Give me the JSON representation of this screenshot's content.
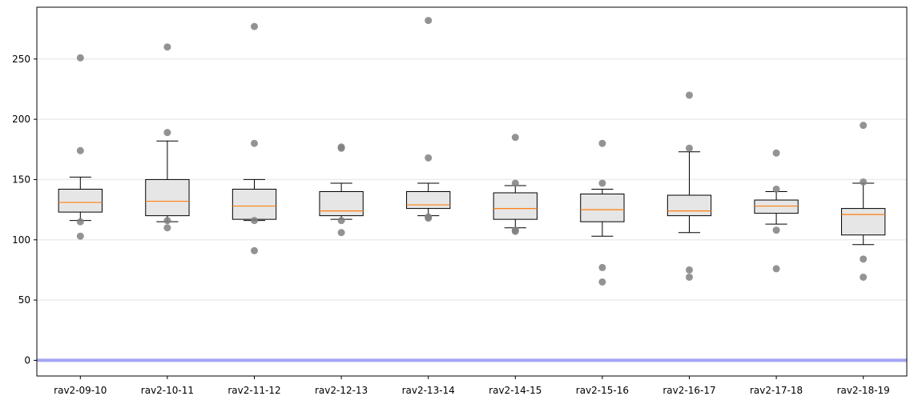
{
  "chart_data": {
    "type": "box",
    "title": "",
    "xlabel": "",
    "ylabel": "",
    "ylim": [
      -13,
      293
    ],
    "yticks": [
      0,
      50,
      100,
      150,
      200,
      250
    ],
    "grid": "horizontal",
    "reference_line": {
      "y": 0,
      "color": "#a4a4f4"
    },
    "colors": {
      "box_fill": "#e6e6e6",
      "median": "#ff7f0e",
      "outlier": "#808080",
      "grid": "#ececec"
    },
    "categories": [
      "rav2-09-10",
      "rav2-10-11",
      "rav2-11-12",
      "rav2-12-13",
      "rav2-13-14",
      "rav2-14-15",
      "rav2-15-16",
      "rav2-16-17",
      "rav2-17-18",
      "rav2-18-19"
    ],
    "boxes": [
      {
        "whisker_low": 116,
        "q1": 123,
        "median": 131,
        "q3": 142,
        "whisker_high": 152,
        "outliers": [
          251,
          174,
          115,
          103
        ]
      },
      {
        "whisker_low": 115,
        "q1": 120,
        "median": 132,
        "q3": 150,
        "whisker_high": 182,
        "outliers": [
          260,
          189,
          116,
          110
        ]
      },
      {
        "whisker_low": 116,
        "q1": 117,
        "median": 128,
        "q3": 142,
        "whisker_high": 150,
        "outliers": [
          277,
          180,
          116,
          91
        ]
      },
      {
        "whisker_low": 117,
        "q1": 120,
        "median": 124,
        "q3": 140,
        "whisker_high": 147,
        "outliers": [
          177,
          176,
          116,
          106
        ]
      },
      {
        "whisker_low": 120,
        "q1": 126,
        "median": 129,
        "q3": 140,
        "whisker_high": 147,
        "outliers": [
          282,
          168,
          119,
          118
        ]
      },
      {
        "whisker_low": 110,
        "q1": 117,
        "median": 126,
        "q3": 139,
        "whisker_high": 145,
        "outliers": [
          185,
          147,
          108,
          107
        ]
      },
      {
        "whisker_low": 103,
        "q1": 115,
        "median": 125,
        "q3": 138,
        "whisker_high": 142,
        "outliers": [
          180,
          147,
          77,
          65
        ]
      },
      {
        "whisker_low": 106,
        "q1": 120,
        "median": 124,
        "q3": 137,
        "whisker_high": 173,
        "outliers": [
          220,
          176,
          75,
          69
        ]
      },
      {
        "whisker_low": 113,
        "q1": 122,
        "median": 128,
        "q3": 133,
        "whisker_high": 140,
        "outliers": [
          172,
          142,
          108,
          76
        ]
      },
      {
        "whisker_low": 96,
        "q1": 104,
        "median": 121,
        "q3": 126,
        "whisker_high": 147,
        "outliers": [
          195,
          148,
          84,
          69
        ]
      }
    ]
  }
}
